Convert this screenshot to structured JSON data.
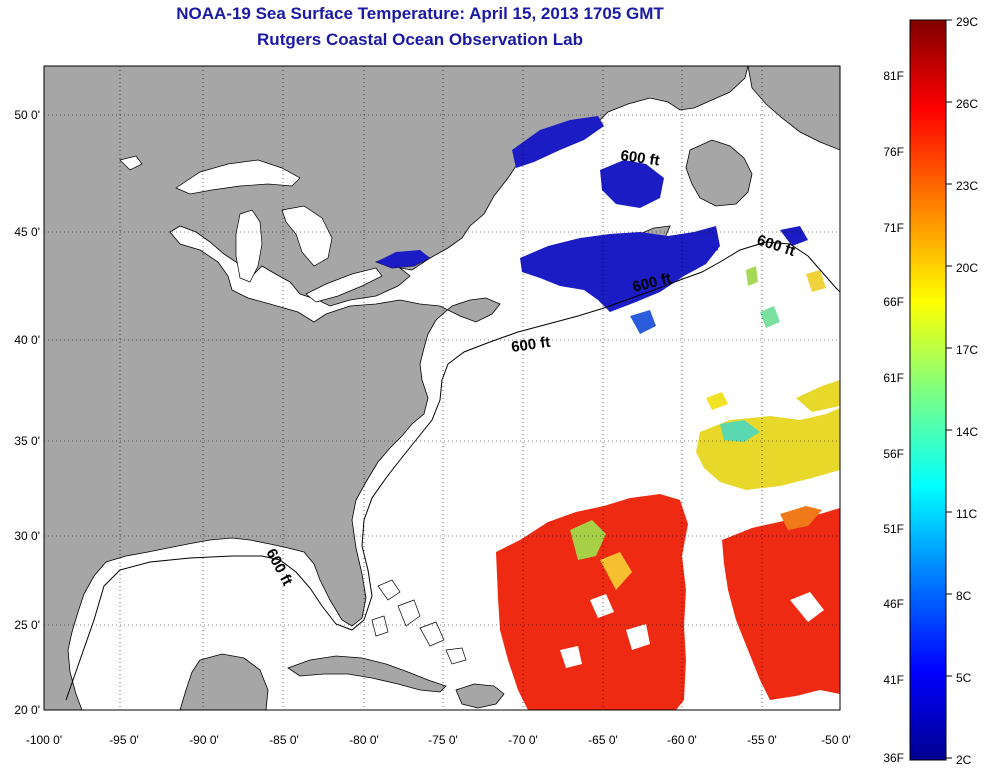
{
  "title": "NOAA-19 Sea Surface Temperature:  April 15, 2013 1705 GMT",
  "subtitle": "Rutgers Coastal Ocean Observation Lab",
  "lat_ticks": [
    "50 0'",
    "45 0'",
    "40 0'",
    "35 0'",
    "30 0'",
    "25 0'",
    "20 0'"
  ],
  "lon_ticks": [
    "-100 0'",
    "-95 0'",
    "-90 0'",
    "-85 0'",
    "-80 0'",
    "-75 0'",
    "-70 0'",
    "-65 0'",
    "-60 0'",
    "-55 0'",
    "-50 0'"
  ],
  "isobath_labels": [
    "600 ft",
    "600 ft",
    "600 ft",
    "600 ft",
    "600 ft"
  ],
  "colorbar": {
    "fahrenheit_labels": [
      "81F",
      "76F",
      "71F",
      "66F",
      "61F",
      "56F",
      "51F",
      "46F",
      "41F",
      "36F"
    ],
    "celsius_labels": [
      "29C",
      "26C",
      "23C",
      "20C",
      "17C",
      "14C",
      "11C",
      "8C",
      "5C",
      "2C"
    ],
    "stops": [
      "#00008f",
      "#0000ff",
      "#0080ff",
      "#00ffff",
      "#80ff80",
      "#ffff00",
      "#ff8000",
      "#ff0000",
      "#800000"
    ]
  },
  "colors": {
    "land": "#a6a6a6",
    "ocean": "#ffffff",
    "title": "#1a1aa6",
    "cold": "#1c1cc4",
    "warm": "#ef2a12",
    "mid": "#f0d21c"
  }
}
